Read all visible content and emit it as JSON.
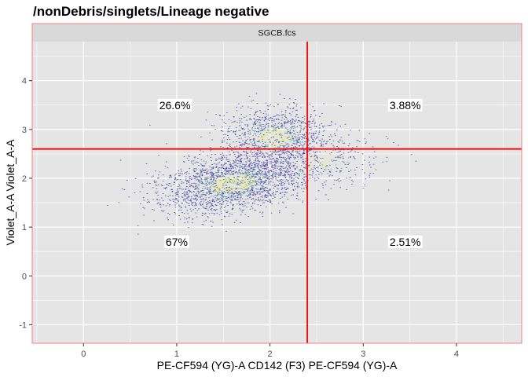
{
  "chart_data": {
    "type": "scatter",
    "title": "/nonDebris/singlets/Lineage negative",
    "panel_label": "SGCB.fcs",
    "xlabel": "PE-CF594 (YG)-A CD142 (F3) PE-CF594 (YG)-A",
    "ylabel": "Violet_A-A Violet_A-A",
    "xlim": [
      -0.55,
      4.7
    ],
    "ylim": [
      -1.38,
      4.8
    ],
    "x_ticks": [
      0,
      1,
      2,
      3,
      4
    ],
    "y_ticks": [
      -1,
      0,
      1,
      2,
      3,
      4
    ],
    "grid": true,
    "gate": {
      "x": 2.4,
      "y": 2.6,
      "color": "#ff0000"
    },
    "quadrants": [
      {
        "position": "top-left",
        "label": "26.6%",
        "x": 0.98,
        "y": 3.5
      },
      {
        "position": "top-right",
        "label": "3.88%",
        "x": 3.45,
        "y": 3.5
      },
      {
        "position": "bottom-left",
        "label": "67%",
        "x": 1.0,
        "y": 0.7
      },
      {
        "position": "bottom-right",
        "label": "2.51%",
        "x": 3.45,
        "y": 0.7
      }
    ],
    "populations": [
      {
        "name": "",
        "cx": 1.6,
        "cy": 1.9,
        "sx": 0.42,
        "sy": 0.28,
        "rot": 0.5,
        "n": 2200
      },
      {
        "name": "",
        "cx": 2.05,
        "cy": 2.85,
        "sx": 0.28,
        "sy": 0.32,
        "rot": 0.0,
        "n": 1100
      },
      {
        "name": "",
        "cx": 2.5,
        "cy": 2.35,
        "sx": 0.35,
        "sy": 0.3,
        "rot": 0.2,
        "n": 350
      }
    ],
    "colors": {
      "panel_bg": "#e5e5e5",
      "grid": "#ffffff",
      "strip_bg": "#d9d9d9",
      "border": "#f08080",
      "point_low": "#4b48a8",
      "point_mid": "#5fa7a0",
      "point_high": "#e9f06a"
    }
  }
}
